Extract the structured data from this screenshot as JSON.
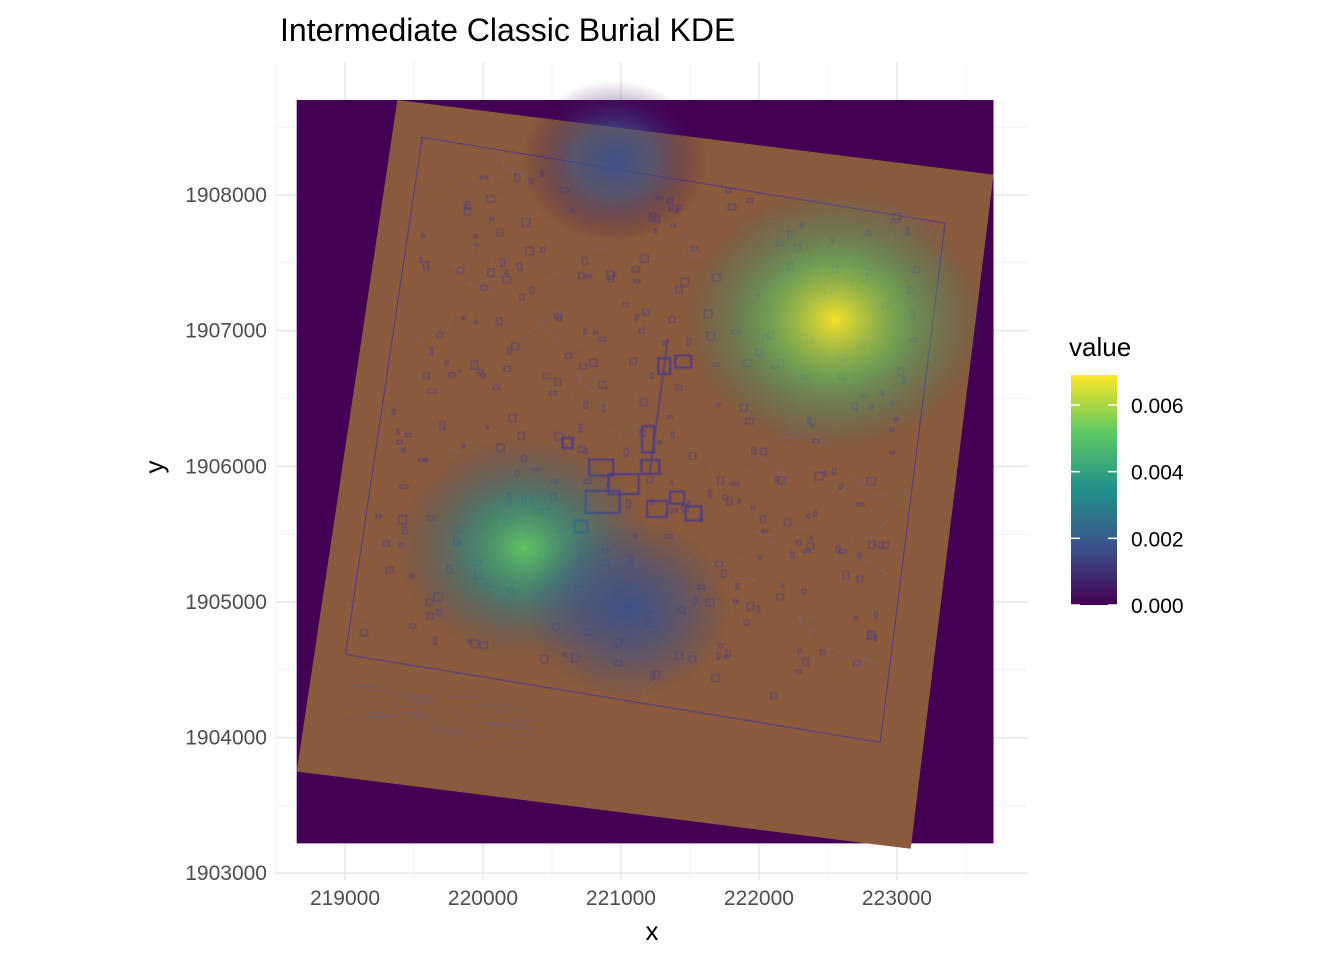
{
  "chart_data": {
    "type": "heatmap",
    "title": "Intermediate Classic Burial KDE",
    "xlabel": "x",
    "ylabel": "y",
    "xlim": [
      218500,
      223950
    ],
    "ylim": [
      1902950,
      1908980
    ],
    "x_ticks": [
      219000,
      220000,
      221000,
      222000,
      223000
    ],
    "y_ticks": [
      1903000,
      1904000,
      1905000,
      1906000,
      1907000,
      1908000
    ],
    "grid": true,
    "raster_extent": {
      "x": [
        218650,
        223700
      ],
      "y": [
        1903220,
        1908700
      ]
    },
    "map_image_corners": [
      [
        219380,
        1908700
      ],
      [
        223700,
        1908150
      ],
      [
        223100,
        1903180
      ],
      [
        218650,
        1903750
      ]
    ],
    "hotspots": [
      {
        "x": 222550,
        "y": 1907080,
        "value": 0.0069
      },
      {
        "x": 220300,
        "y": 1905400,
        "value": 0.0047
      },
      {
        "x": 221050,
        "y": 1904950,
        "value": 0.0022
      },
      {
        "x": 220950,
        "y": 1908250,
        "value": 0.0012
      }
    ],
    "legend": {
      "title": "value",
      "position": "right",
      "min": 0,
      "max": 0.0069,
      "breaks": [
        0.0,
        0.002,
        0.004,
        0.006
      ],
      "labels": [
        "0.000",
        "0.002",
        "0.004",
        "0.006"
      ],
      "palette": [
        "#440154",
        "#3b528b",
        "#21908c",
        "#5dc863",
        "#fde725"
      ]
    },
    "colors": {
      "map_overlay": "#8a5a3c",
      "map_linework": "#4a3a8a",
      "grid_major": "#e5e5e5",
      "grid_minor": "#f2f2f2"
    }
  }
}
